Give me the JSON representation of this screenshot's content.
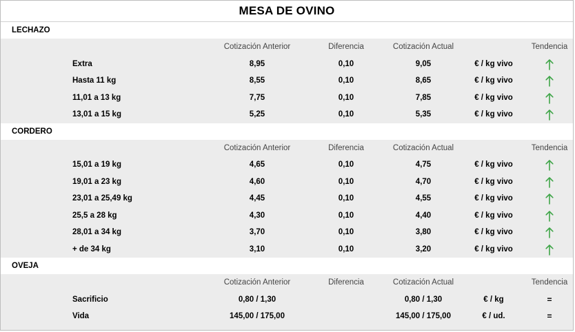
{
  "title": "MESA DE OVINO",
  "headers": {
    "prev": "Cotización Anterior",
    "diff": "Diferencia",
    "curr": "Cotización Actual",
    "trend": "Tendencia"
  },
  "colors": {
    "arrow_up": "#3fa548"
  },
  "sections": [
    {
      "name": "LECHAZO",
      "rows": [
        {
          "label": "Extra",
          "prev": "8,95",
          "diff": "0,10",
          "curr": "9,05",
          "unit": "€ / kg vivo",
          "trend": "up-arrow-icon"
        },
        {
          "label": "Hasta 11 kg",
          "prev": "8,55",
          "diff": "0,10",
          "curr": "8,65",
          "unit": "€ / kg vivo",
          "trend": "up-arrow-icon"
        },
        {
          "label": "11,01 a 13 kg",
          "prev": "7,75",
          "diff": "0,10",
          "curr": "7,85",
          "unit": "€ / kg vivo",
          "trend": "up-arrow-icon"
        },
        {
          "label": "13,01 a 15 kg",
          "prev": "5,25",
          "diff": "0,10",
          "curr": "5,35",
          "unit": "€ / kg vivo",
          "trend": "up-arrow-icon"
        }
      ]
    },
    {
      "name": "CORDERO",
      "rows": [
        {
          "label": "15,01 a 19 kg",
          "prev": "4,65",
          "diff": "0,10",
          "curr": "4,75",
          "unit": "€ / kg vivo",
          "trend": "up-arrow-icon"
        },
        {
          "label": "19,01 a 23 kg",
          "prev": "4,60",
          "diff": "0,10",
          "curr": "4,70",
          "unit": "€ / kg vivo",
          "trend": "up-arrow-icon"
        },
        {
          "label": "23,01 a 25,49 kg",
          "prev": "4,45",
          "diff": "0,10",
          "curr": "4,55",
          "unit": "€ / kg vivo",
          "trend": "up-arrow-icon"
        },
        {
          "label": "25,5 a 28 kg",
          "prev": "4,30",
          "diff": "0,10",
          "curr": "4,40",
          "unit": "€ / kg vivo",
          "trend": "up-arrow-icon"
        },
        {
          "label": "28,01 a 34 kg",
          "prev": "3,70",
          "diff": "0,10",
          "curr": "3,80",
          "unit": "€ / kg vivo",
          "trend": "up-arrow-icon"
        },
        {
          "label": "+ de 34 kg",
          "prev": "3,10",
          "diff": "0,10",
          "curr": "3,20",
          "unit": "€ / kg vivo",
          "trend": "up-arrow-icon"
        }
      ]
    },
    {
      "name": "OVEJA",
      "rows": [
        {
          "label": "Sacrificio",
          "prev": "0,80 / 1,30",
          "diff": "",
          "curr": "0,80 / 1,30",
          "unit": "€ / kg",
          "trend": "="
        },
        {
          "label": "Vida",
          "prev": "145,00 / 175,00",
          "diff": "",
          "curr": "145,00 / 175,00",
          "unit": "€ / ud.",
          "trend": "="
        }
      ]
    }
  ]
}
